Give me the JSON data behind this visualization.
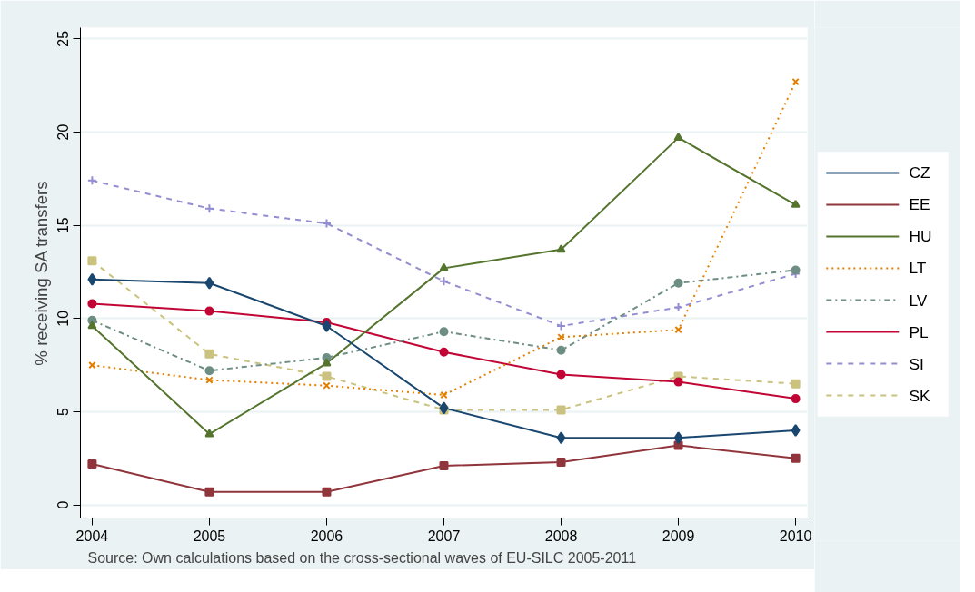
{
  "chart_data": {
    "type": "line",
    "ylabel": "% receiving SA transfers",
    "x": [
      2004,
      2005,
      2006,
      2007,
      2008,
      2009,
      2010
    ],
    "series": [
      {
        "name": "CZ",
        "color": "#1a476f",
        "marker": "diamond",
        "line_style": "solid",
        "values": [
          12.1,
          11.9,
          9.6,
          5.2,
          3.6,
          3.6,
          4.0
        ]
      },
      {
        "name": "EE",
        "color": "#90353b",
        "marker": "square",
        "line_style": "solid",
        "values": [
          2.2,
          0.7,
          0.7,
          2.1,
          2.3,
          3.2,
          2.5
        ]
      },
      {
        "name": "HU",
        "color": "#55752f",
        "marker": "triangle",
        "line_style": "solid",
        "values": [
          9.6,
          3.8,
          7.6,
          12.7,
          13.7,
          19.7,
          16.1
        ]
      },
      {
        "name": "LT",
        "color": "#e37e00",
        "marker": "cross",
        "line_style": "dotted",
        "values": [
          7.5,
          6.7,
          6.4,
          5.9,
          9.0,
          9.4,
          22.7
        ]
      },
      {
        "name": "LV",
        "color": "#6e8e84",
        "marker": "circle",
        "line_style": "dashdot",
        "values": [
          9.9,
          7.2,
          7.9,
          9.3,
          8.3,
          11.9,
          12.6
        ]
      },
      {
        "name": "PL",
        "color": "#c10534",
        "marker": "circle",
        "line_style": "solid",
        "values": [
          10.8,
          10.4,
          9.8,
          8.2,
          7.0,
          6.6,
          5.7
        ]
      },
      {
        "name": "SI",
        "color": "#938dd2",
        "marker": "cross",
        "line_style": "dashed",
        "values": [
          17.4,
          15.9,
          15.1,
          12.0,
          9.6,
          10.6,
          12.4
        ]
      },
      {
        "name": "SK",
        "color": "#cac27e",
        "marker": "square",
        "line_style": "dashed",
        "values": [
          13.1,
          8.1,
          6.9,
          5.1,
          5.1,
          6.9,
          6.5
        ]
      }
    ],
    "xlim": [
      2003.9,
      2010.1
    ],
    "ylim": [
      -0.7,
      25.6
    ],
    "xticks": [
      2004,
      2005,
      2006,
      2007,
      2008,
      2009,
      2010
    ],
    "yticks": [
      0,
      5,
      10,
      15,
      20,
      25
    ],
    "grid": "y",
    "legend": "right",
    "annotations": [
      "Source: Own calculations based on the cross-sectional waves of EU-SILC 2005-2011"
    ]
  }
}
